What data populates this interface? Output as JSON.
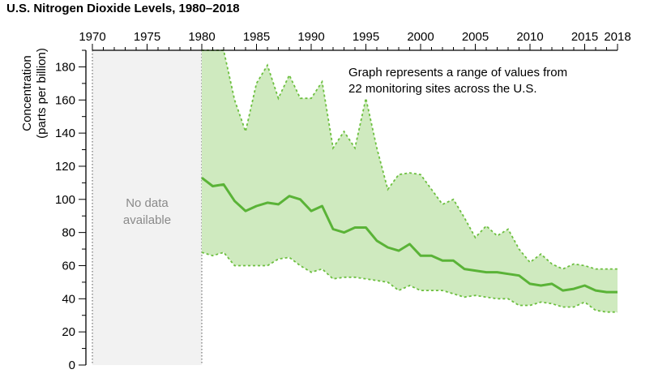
{
  "chart_data": {
    "type": "area",
    "title": "U.S. Nitrogen Dioxide Levels, 1980–2018",
    "ylabel": [
      "Concentration",
      "(parts per billion)"
    ],
    "xlabel": "",
    "xlim": [
      1970,
      2018
    ],
    "ylim": [
      0,
      190
    ],
    "x_ticks": [
      1970,
      1975,
      1980,
      1985,
      1990,
      1995,
      2000,
      2005,
      2010,
      2015,
      2018
    ],
    "y_ticks": [
      0,
      20,
      40,
      60,
      80,
      100,
      120,
      140,
      160,
      180
    ],
    "x_minor_step": 1,
    "y_minor_step": 10,
    "no_data_range": [
      1970,
      1980
    ],
    "no_data_label": [
      "No data",
      "available"
    ],
    "annotation": [
      "Graph represents a range of values from",
      "22 monitoring sites across the U.S."
    ],
    "colors": {
      "band_fill": "#cfeabf",
      "band_edge": "#6cbf3f",
      "mean_line": "#5ab337",
      "no_data_fill": "#f2f2f2",
      "no_data_text": "#8a8a8a"
    },
    "x": [
      1980,
      1981,
      1982,
      1983,
      1984,
      1985,
      1986,
      1987,
      1988,
      1989,
      1990,
      1991,
      1992,
      1993,
      1994,
      1995,
      1996,
      1997,
      1998,
      1999,
      2000,
      2001,
      2002,
      2003,
      2004,
      2005,
      2006,
      2007,
      2008,
      2009,
      2010,
      2011,
      2012,
      2013,
      2014,
      2015,
      2016,
      2017,
      2018
    ],
    "series": [
      {
        "role": "upper",
        "values": [
          190,
          190,
          190,
          160,
          141,
          170,
          181,
          161,
          175,
          161,
          161,
          171,
          131,
          141,
          131,
          161,
          131,
          106,
          115,
          116,
          115,
          106,
          97,
          100,
          89,
          77,
          84,
          78,
          82,
          70,
          62,
          67,
          61,
          58,
          61,
          60,
          58,
          58,
          58
        ]
      },
      {
        "role": "mean",
        "values": [
          113,
          108,
          109,
          99,
          93,
          96,
          98,
          97,
          102,
          100,
          93,
          96,
          82,
          80,
          83,
          83,
          75,
          71,
          69,
          73,
          66,
          66,
          63,
          63,
          58,
          57,
          56,
          56,
          55,
          54,
          49,
          48,
          49,
          45,
          46,
          48,
          45,
          44,
          44
        ]
      },
      {
        "role": "lower",
        "values": [
          68,
          66,
          68,
          60,
          60,
          60,
          60,
          64,
          65,
          60,
          56,
          58,
          52,
          53,
          53,
          52,
          51,
          50,
          45,
          48,
          45,
          45,
          45,
          43,
          41,
          42,
          41,
          40,
          40,
          36,
          36,
          38,
          37,
          35,
          35,
          38,
          33,
          32,
          32
        ]
      }
    ]
  }
}
